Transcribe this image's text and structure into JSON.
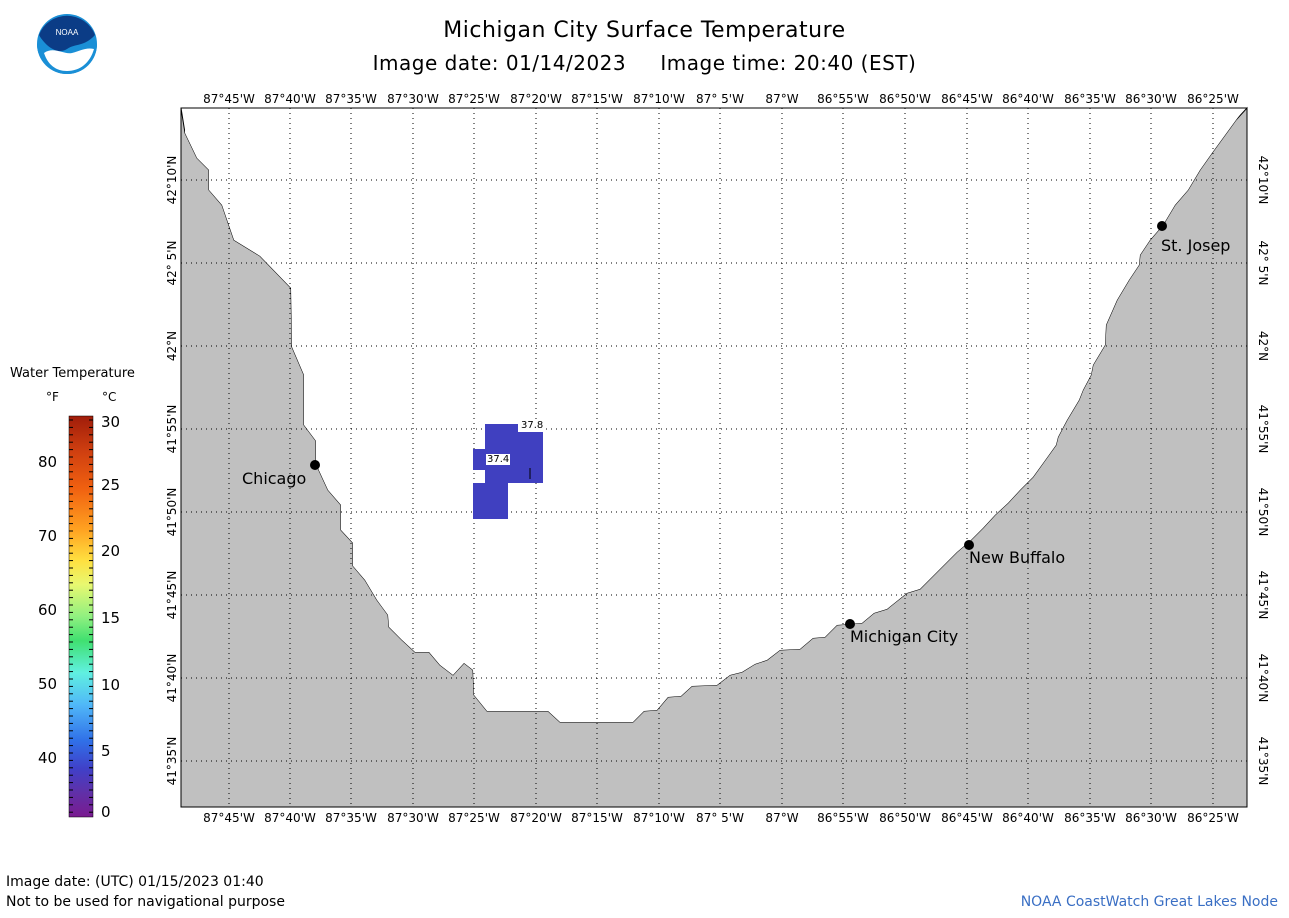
{
  "header": {
    "title": "Michigan City Surface Temperature",
    "subtitle": "Image date: 01/14/2023     Image time: 20:40 (EST)"
  },
  "logo": {
    "text": "NOAA",
    "icon": "noaa-logo-icon"
  },
  "map": {
    "land_color": "#c0c0c0",
    "water_color": "#ffffff",
    "lon_labels": [
      "87°45'W",
      "87°40'W",
      "87°35'W",
      "87°30'W",
      "87°25'W",
      "87°20'W",
      "87°15'W",
      "87°10'W",
      "87° 5'W",
      "87°W",
      "86°55'W",
      "86°50'W",
      "86°45'W",
      "86°40'W",
      "86°35'W",
      "86°30'W",
      "86°25'W"
    ],
    "lat_labels": [
      "42°10'N",
      "42° 5'N",
      "42°N",
      "41°55'N",
      "41°50'N",
      "41°45'N",
      "41°40'N",
      "41°35'N"
    ],
    "cities": [
      {
        "name": "Chicago"
      },
      {
        "name": "St. Josep"
      },
      {
        "name": "New Buffalo"
      },
      {
        "name": "Michigan City"
      }
    ],
    "temperature_patch_color": "#4040c0",
    "temperature_labels": [
      "37.8",
      "37.4"
    ]
  },
  "legend": {
    "title": "Water Temperature",
    "unit_f": "°F",
    "unit_c": "°C",
    "f_ticks": [
      "80",
      "70",
      "60",
      "50",
      "40"
    ],
    "c_ticks": [
      "30",
      "25",
      "20",
      "15",
      "10",
      "5",
      "0"
    ],
    "colors": [
      "#a01c0a",
      "#f06010",
      "#ffa020",
      "#ffe040",
      "#e8f870",
      "#90f080",
      "#40e070",
      "#60f0e0",
      "#50b8f8",
      "#3070e8",
      "#4040c8",
      "#6030a8",
      "#7a1a90"
    ]
  },
  "footer": {
    "utc_date": "Image date: (UTC) 01/15/2023  01:40",
    "notice": "Not to be used for navigational purpose",
    "credit": "NOAA CoastWatch Great Lakes Node"
  }
}
